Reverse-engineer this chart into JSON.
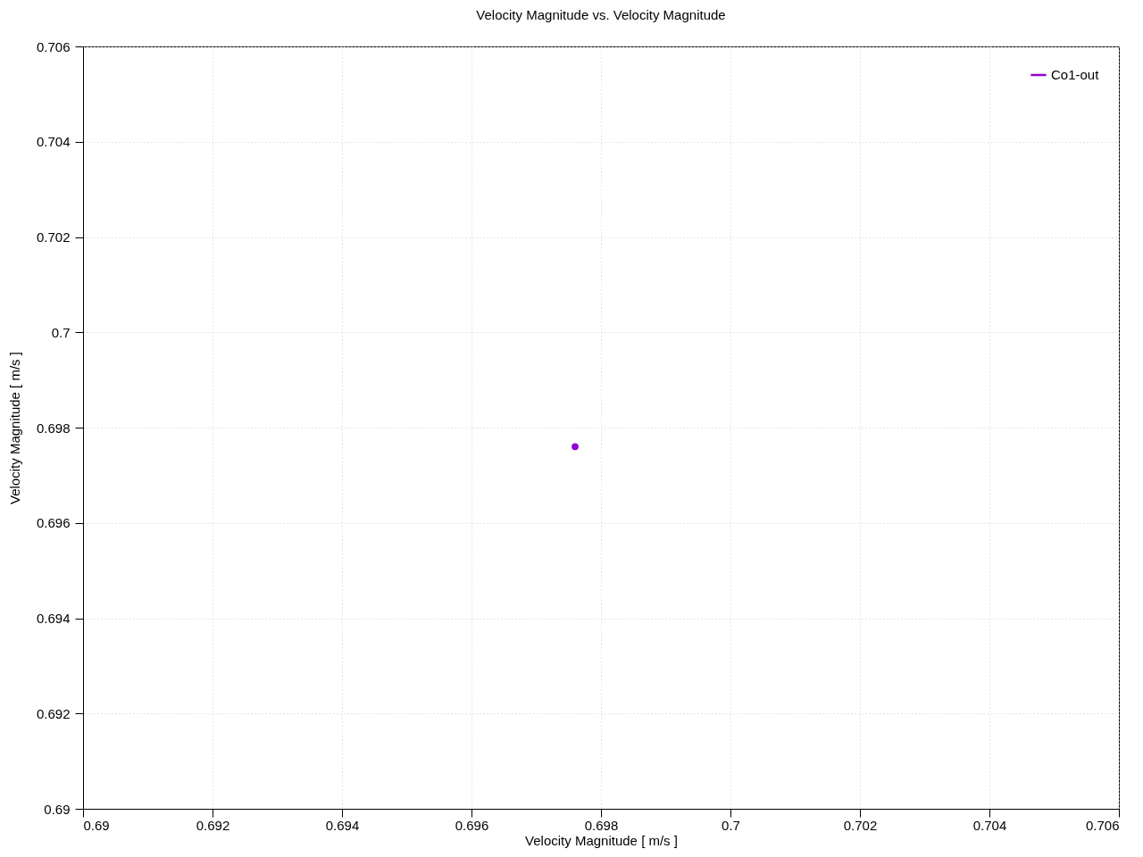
{
  "chart_data": {
    "type": "line",
    "title": "Velocity Magnitude vs. Velocity Magnitude",
    "xlabel": "Velocity Magnitude [ m/s ]",
    "ylabel": "Velocity Magnitude [ m/s ]",
    "x": [
      0.6976
    ],
    "series": [
      {
        "name": "Co1-out",
        "color": "#9400d3",
        "values": [
          0.6976
        ]
      }
    ],
    "xlim": [
      0.69,
      0.706
    ],
    "xticks": [
      0.69,
      0.692,
      0.694,
      0.696,
      0.698,
      0.7,
      0.702,
      0.704,
      0.706
    ],
    "ylim": [
      0.69,
      0.706
    ],
    "yticks": [
      0.69,
      0.692,
      0.694,
      0.696,
      0.698,
      0.7,
      0.702,
      0.704,
      0.706
    ],
    "grid": true,
    "legend": "top right",
    "marker": "circle",
    "line_style": "solid"
  }
}
